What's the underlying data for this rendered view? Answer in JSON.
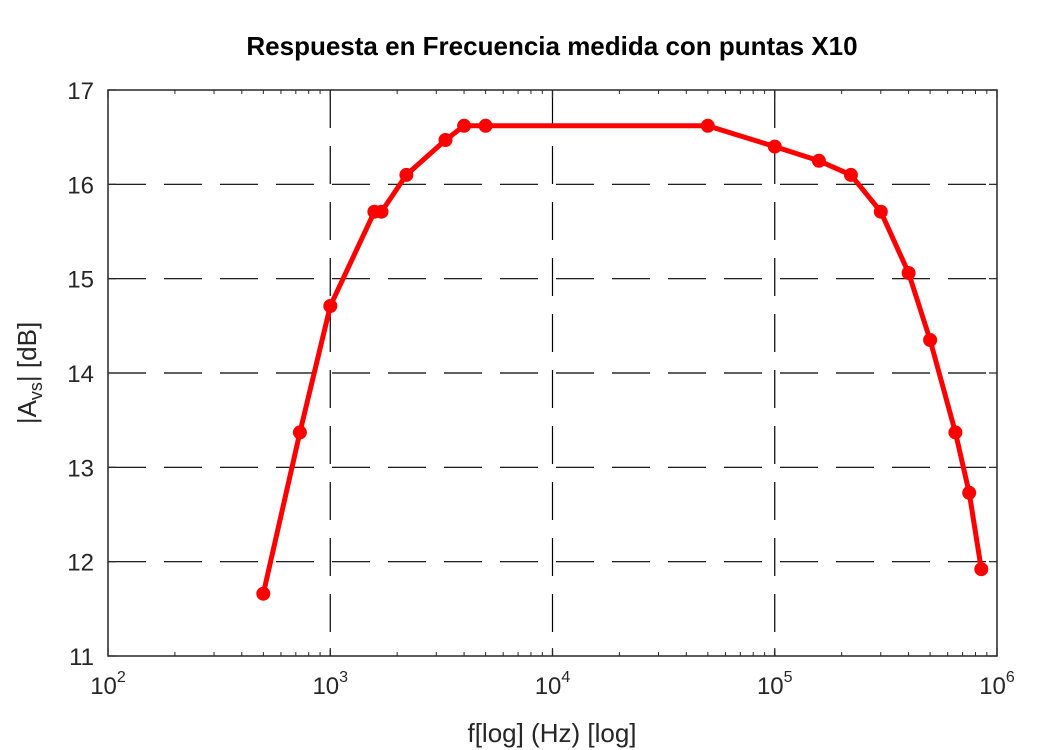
{
  "chart_data": {
    "type": "line",
    "title": "Respuesta en Frecuencia medida con puntas X10",
    "xlabel": "f[log] (Hz) [log]",
    "ylabel": {
      "prefix": "|A",
      "subscript": "vs",
      "suffix": "| [dB]"
    },
    "xscale": "log",
    "xlim": [
      100,
      1000000
    ],
    "ylim": [
      11,
      17
    ],
    "x_ticks": [
      {
        "base": "10",
        "exp": "2",
        "value": 100
      },
      {
        "base": "10",
        "exp": "3",
        "value": 1000
      },
      {
        "base": "10",
        "exp": "4",
        "value": 10000
      },
      {
        "base": "10",
        "exp": "5",
        "value": 100000
      },
      {
        "base": "10",
        "exp": "6",
        "value": 1000000
      }
    ],
    "y_ticks": [
      "11",
      "12",
      "13",
      "14",
      "15",
      "16",
      "17"
    ],
    "grid": true,
    "grid_style": "dashed",
    "legend": "none",
    "series": [
      {
        "color": "#ff0000",
        "marker": "circle",
        "x": [
          500,
          730,
          1000,
          1580,
          1700,
          2200,
          3300,
          4000,
          5000,
          50000,
          100000,
          158000,
          220000,
          300000,
          400000,
          500000,
          650000,
          750000,
          850000
        ],
        "y": [
          11.66,
          13.37,
          14.71,
          15.71,
          15.71,
          16.1,
          16.47,
          16.62,
          16.62,
          16.62,
          16.4,
          16.25,
          16.1,
          15.71,
          15.06,
          14.35,
          13.37,
          12.73,
          11.92
        ]
      }
    ]
  }
}
